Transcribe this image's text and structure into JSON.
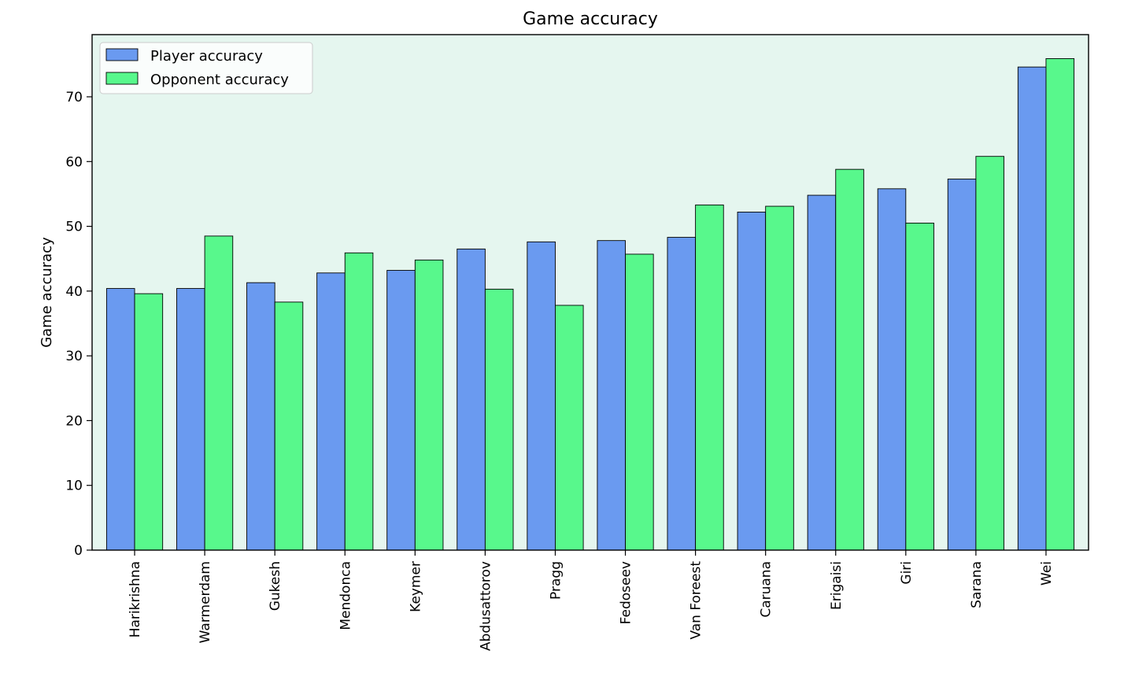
{
  "chart_data": {
    "type": "bar",
    "title": "Game accuracy",
    "xlabel": "",
    "ylabel": "Game accuracy",
    "categories": [
      "Harikrishna",
      "Warmerdam",
      "Gukesh",
      "Mendonca",
      "Keymer",
      "Abdusattorov",
      "Pragg",
      "Fedoseev",
      "Van Foreest",
      "Caruana",
      "Erigaisi",
      "Giri",
      "Sarana",
      "Wei"
    ],
    "series": [
      {
        "name": "Player accuracy",
        "color": "#6a9af0",
        "values": [
          40.4,
          40.4,
          41.3,
          42.8,
          43.2,
          46.5,
          47.6,
          47.8,
          48.3,
          52.2,
          54.8,
          55.8,
          57.3,
          74.6
        ]
      },
      {
        "name": "Opponent accuracy",
        "color": "#58f88c",
        "values": [
          39.6,
          48.5,
          38.3,
          45.9,
          44.8,
          40.3,
          37.8,
          45.7,
          53.3,
          53.1,
          58.8,
          50.5,
          60.8,
          75.9
        ]
      }
    ],
    "ylim": [
      0,
      79.6
    ],
    "yticks": [
      0,
      10,
      20,
      30,
      40,
      50,
      60,
      70
    ],
    "plot_background": "#e5f6ef",
    "legend_position": "upper-left",
    "grid": false
  }
}
